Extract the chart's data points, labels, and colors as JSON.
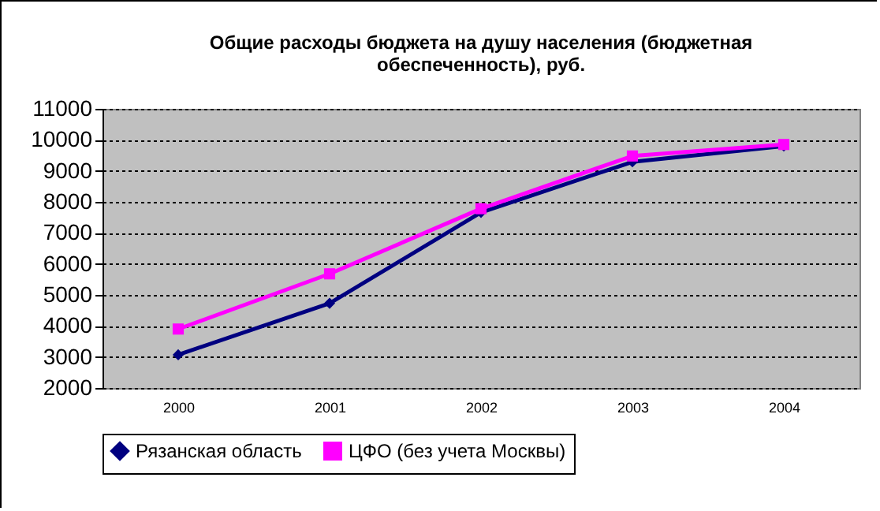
{
  "chart_data": {
    "type": "line",
    "title": "Общие расходы бюджета на душу населения (бюджетная обеспеченность), руб.",
    "categories": [
      "2000",
      "2001",
      "2002",
      "2003",
      "2004"
    ],
    "series": [
      {
        "name": "Рязанская область",
        "color": "#000080",
        "marker": "diamond",
        "values": [
          3070,
          4730,
          7660,
          9290,
          9800
        ]
      },
      {
        "name": "ЦФО (без учета Москвы)",
        "color": "#ff00ff",
        "marker": "square",
        "values": [
          3900,
          5680,
          7780,
          9480,
          9850
        ]
      }
    ],
    "ylim": [
      2000,
      11000
    ],
    "yticks": [
      2000,
      3000,
      4000,
      5000,
      6000,
      7000,
      8000,
      9000,
      10000,
      11000
    ],
    "grid": "y",
    "legend": "bottom",
    "line_style": "solid"
  }
}
